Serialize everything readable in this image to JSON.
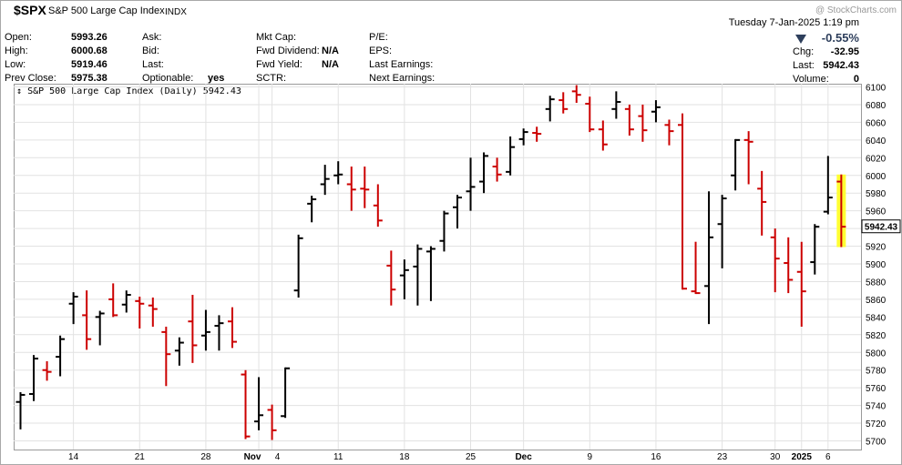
{
  "header": {
    "symbol": "$SPX",
    "name": "S&P 500 Large Cap Index",
    "exchange": "INDX",
    "datetime": "Tuesday  7-Jan-2025  1:19 pm",
    "watermark": "@ StockCharts.com",
    "pct_change": "-0.55%",
    "down_color": "#c00000"
  },
  "quote": {
    "open_label": "Open:",
    "open": "5993.26",
    "high_label": "High:",
    "high": "6000.68",
    "low_label": "Low:",
    "low": "5919.46",
    "prev_label": "Prev Close:",
    "prev": "5975.38",
    "ask_label": "Ask:",
    "bid_label": "Bid:",
    "last_label": "Last:",
    "optionable_label": "Optionable:",
    "optionable": "yes",
    "mktcap_label": "Mkt Cap:",
    "fwd_div_label": "Fwd Dividend:",
    "fwd_div": "N/A",
    "fwd_yield_label": "Fwd Yield:",
    "fwd_yield": "N/A",
    "sctr_label": "SCTR:",
    "pe_label": "P/E:",
    "eps_label": "EPS:",
    "last_earn_label": "Last Earnings:",
    "next_earn_label": "Next Earnings:",
    "chg_label": "Chg:",
    "chg": "-32.95",
    "last2_label": "Last:",
    "last2": "5942.43",
    "volume_label": "Volume:",
    "volume": "0"
  },
  "chart_data": {
    "type": "ohlc",
    "title": "S&P 500 Large Cap Index (Daily) 5942.43",
    "last_price_label": "5942.43",
    "ylim": [
      5690,
      6105
    ],
    "y_ticks": [
      5700,
      5720,
      5740,
      5760,
      5780,
      5800,
      5820,
      5840,
      5860,
      5880,
      5900,
      5920,
      5940,
      5960,
      5980,
      6000,
      6020,
      6040,
      6060,
      6080,
      6100
    ],
    "x_ticks": [
      {
        "label": "14",
        "i": 4
      },
      {
        "label": "21",
        "i": 9
      },
      {
        "label": "28",
        "i": 14
      },
      {
        "label": "Nov",
        "i": 18
      },
      {
        "label": "4",
        "i": 19
      },
      {
        "label": "11",
        "i": 24
      },
      {
        "label": "18",
        "i": 29
      },
      {
        "label": "25",
        "i": 34
      },
      {
        "label": "Dec",
        "i": 38
      },
      {
        "label": "9",
        "i": 43
      },
      {
        "label": "16",
        "i": 48
      },
      {
        "label": "23",
        "i": 53
      },
      {
        "label": "30",
        "i": 57
      },
      {
        "label": "2025",
        "i": 59
      },
      {
        "label": "6",
        "i": 61
      }
    ],
    "up_color": "#000000",
    "down_color": "#cc0000",
    "highlight_color": "#ffff33",
    "bars": [
      {
        "o": 5744,
        "h": 5755,
        "l": 5713,
        "c": 5752
      },
      {
        "o": 5753,
        "h": 5797,
        "l": 5745,
        "c": 5793
      },
      {
        "o": 5780,
        "h": 5790,
        "l": 5768,
        "c": 5778
      },
      {
        "o": 5795,
        "h": 5819,
        "l": 5773,
        "c": 5815
      },
      {
        "o": 5855,
        "h": 5868,
        "l": 5832,
        "c": 5863
      },
      {
        "o": 5842,
        "h": 5870,
        "l": 5803,
        "c": 5815
      },
      {
        "o": 5840,
        "h": 5847,
        "l": 5808,
        "c": 5844
      },
      {
        "o": 5860,
        "h": 5878,
        "l": 5840,
        "c": 5842
      },
      {
        "o": 5854,
        "h": 5870,
        "l": 5845,
        "c": 5865
      },
      {
        "o": 5858,
        "h": 5863,
        "l": 5827,
        "c": 5855
      },
      {
        "o": 5853,
        "h": 5862,
        "l": 5829,
        "c": 5849
      },
      {
        "o": 5823,
        "h": 5829,
        "l": 5762,
        "c": 5798
      },
      {
        "o": 5802,
        "h": 5817,
        "l": 5785,
        "c": 5811
      },
      {
        "o": 5835,
        "h": 5865,
        "l": 5788,
        "c": 5808
      },
      {
        "o": 5819,
        "h": 5848,
        "l": 5802,
        "c": 5823
      },
      {
        "o": 5830,
        "h": 5842,
        "l": 5802,
        "c": 5833
      },
      {
        "o": 5835,
        "h": 5851,
        "l": 5805,
        "c": 5812
      },
      {
        "o": 5775,
        "h": 5780,
        "l": 5702,
        "c": 5705
      },
      {
        "o": 5722,
        "h": 5772,
        "l": 5712,
        "c": 5729
      },
      {
        "o": 5735,
        "h": 5741,
        "l": 5701,
        "c": 5712
      },
      {
        "o": 5728,
        "h": 5783,
        "l": 5726,
        "c": 5782
      },
      {
        "o": 5870,
        "h": 5933,
        "l": 5862,
        "c": 5929
      },
      {
        "o": 5968,
        "h": 5977,
        "l": 5947,
        "c": 5973
      },
      {
        "o": 5990,
        "h": 6012,
        "l": 5978,
        "c": 5996
      },
      {
        "o": 6000,
        "h": 6016,
        "l": 5990,
        "c": 6001
      },
      {
        "o": 5990,
        "h": 6010,
        "l": 5960,
        "c": 5984
      },
      {
        "o": 5985,
        "h": 6010,
        "l": 5963,
        "c": 5984
      },
      {
        "o": 5966,
        "h": 5990,
        "l": 5942,
        "c": 5949
      },
      {
        "o": 5898,
        "h": 5915,
        "l": 5853,
        "c": 5871
      },
      {
        "o": 5887,
        "h": 5905,
        "l": 5860,
        "c": 5893
      },
      {
        "o": 5897,
        "h": 5922,
        "l": 5853,
        "c": 5917
      },
      {
        "o": 5914,
        "h": 5920,
        "l": 5858,
        "c": 5917
      },
      {
        "o": 5926,
        "h": 5960,
        "l": 5914,
        "c": 5957
      },
      {
        "o": 5964,
        "h": 5978,
        "l": 5940,
        "c": 5975
      },
      {
        "o": 5982,
        "h": 6020,
        "l": 5960,
        "c": 5987
      },
      {
        "o": 5993,
        "h": 6026,
        "l": 5980,
        "c": 6022
      },
      {
        "o": 6010,
        "h": 6020,
        "l": 5993,
        "c": 6001
      },
      {
        "o": 6004,
        "h": 6044,
        "l": 6000,
        "c": 6032
      },
      {
        "o": 6041,
        "h": 6053,
        "l": 6034,
        "c": 6049
      },
      {
        "o": 6048,
        "h": 6055,
        "l": 6038,
        "c": 6047
      },
      {
        "o": 6075,
        "h": 6090,
        "l": 6061,
        "c": 6086
      },
      {
        "o": 6085,
        "h": 6094,
        "l": 6070,
        "c": 6075
      },
      {
        "o": 6095,
        "h": 6102,
        "l": 6082,
        "c": 6091
      },
      {
        "o": 6081,
        "h": 6089,
        "l": 6049,
        "c": 6052
      },
      {
        "o": 6052,
        "h": 6062,
        "l": 6028,
        "c": 6035
      },
      {
        "o": 6075,
        "h": 6095,
        "l": 6064,
        "c": 6083
      },
      {
        "o": 6075,
        "h": 6080,
        "l": 6045,
        "c": 6052
      },
      {
        "o": 6067,
        "h": 6080,
        "l": 6038,
        "c": 6051
      },
      {
        "o": 6072,
        "h": 6085,
        "l": 6060,
        "c": 6077
      },
      {
        "o": 6057,
        "h": 6063,
        "l": 6034,
        "c": 6050
      },
      {
        "o": 6057,
        "h": 6070,
        "l": 5871,
        "c": 5872
      },
      {
        "o": 5869,
        "h": 5925,
        "l": 5866,
        "c": 5867
      },
      {
        "o": 5875,
        "h": 5982,
        "l": 5832,
        "c": 5930
      },
      {
        "o": 5945,
        "h": 5978,
        "l": 5895,
        "c": 5974
      },
      {
        "o": 6000,
        "h": 6041,
        "l": 5983,
        "c": 6040
      },
      {
        "o": 6040,
        "h": 6050,
        "l": 5990,
        "c": 6038
      },
      {
        "o": 5985,
        "h": 6005,
        "l": 5932,
        "c": 5970
      },
      {
        "o": 5930,
        "h": 5940,
        "l": 5868,
        "c": 5906
      },
      {
        "o": 5901,
        "h": 5930,
        "l": 5867,
        "c": 5882
      },
      {
        "o": 5891,
        "h": 5925,
        "l": 5829,
        "c": 5869
      },
      {
        "o": 5902,
        "h": 5945,
        "l": 5888,
        "c": 5942
      },
      {
        "o": 5959,
        "h": 6022,
        "l": 5956,
        "c": 5975
      },
      {
        "o": 5993,
        "h": 6001,
        "l": 5919,
        "c": 5942
      }
    ]
  }
}
